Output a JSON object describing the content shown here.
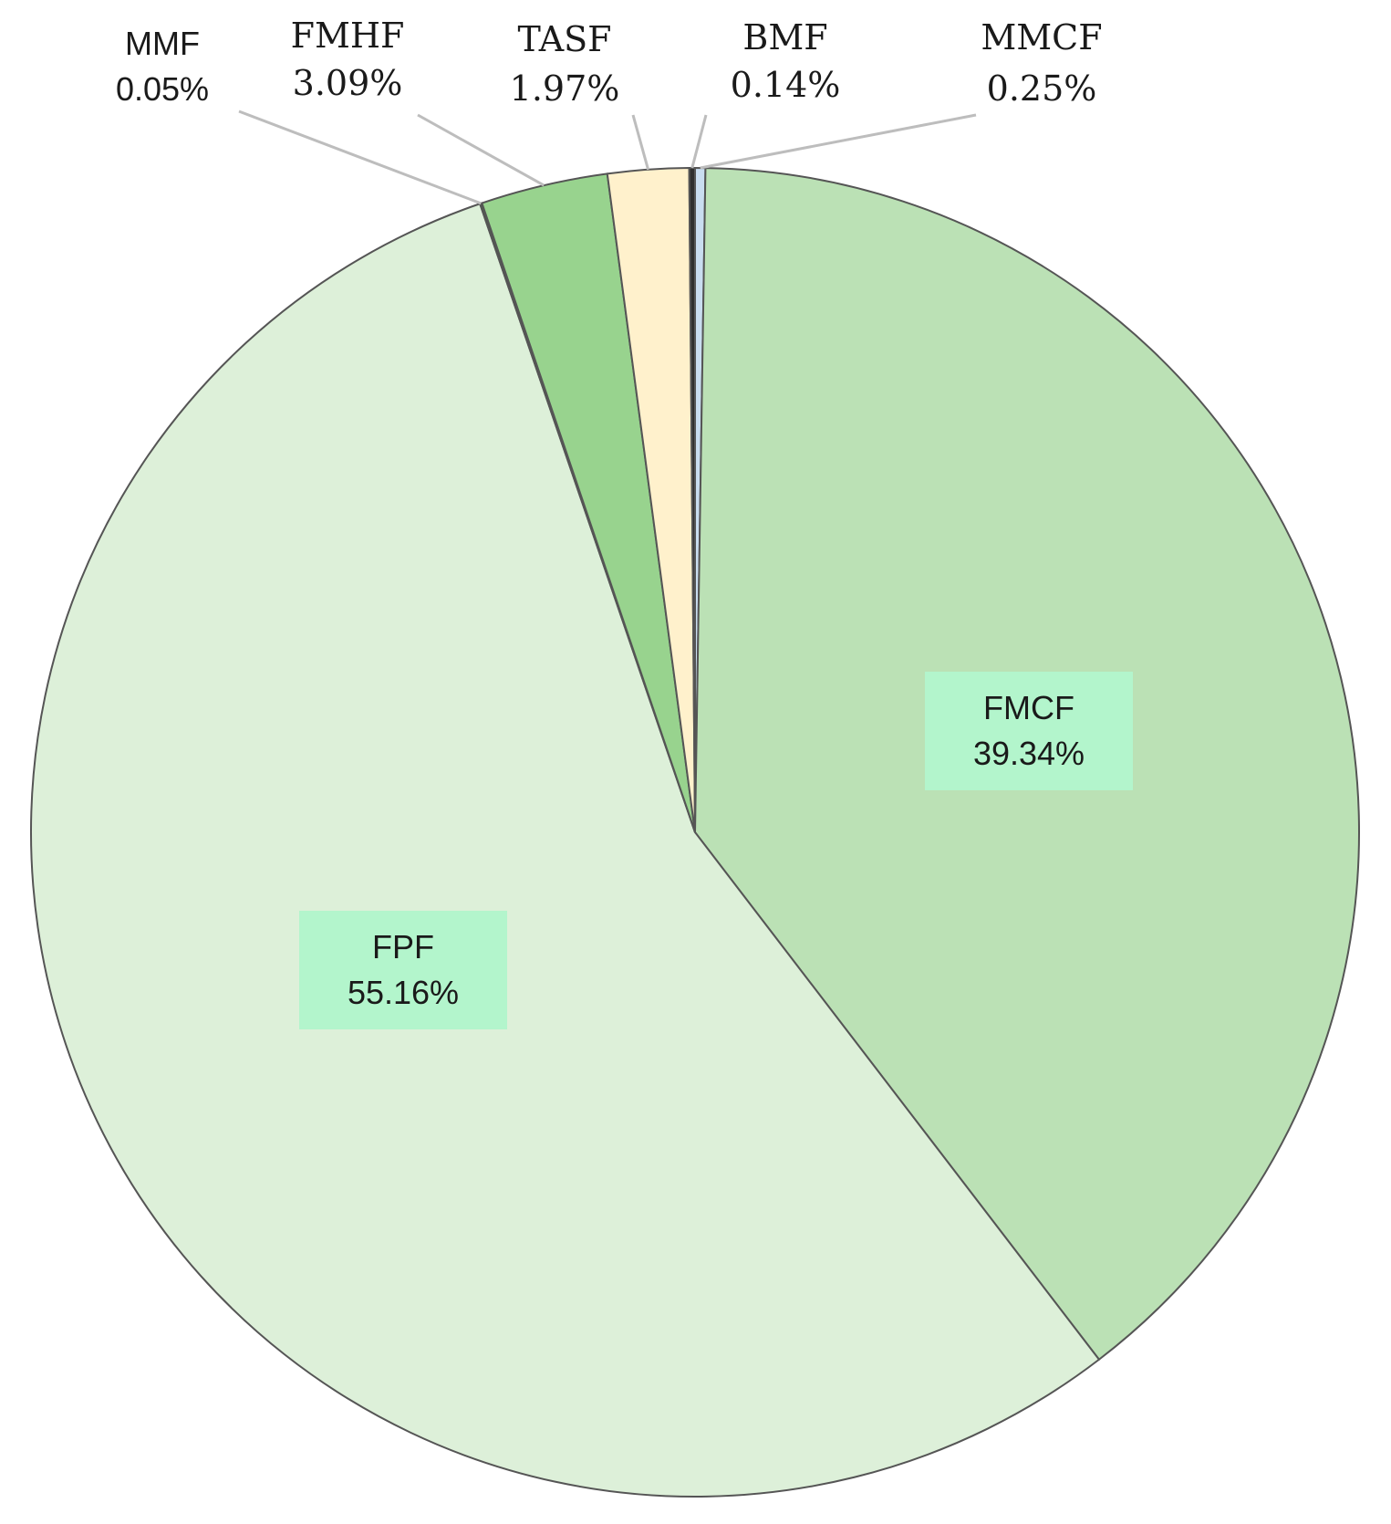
{
  "chart_data": {
    "type": "pie",
    "title": "",
    "start_angle_deg": 0,
    "direction": "clockwise",
    "slices": [
      {
        "name": "MMCF",
        "value": 0.25,
        "label": "0.25%",
        "color": "#c9ddf0",
        "label_style": "outside"
      },
      {
        "name": "FMCF",
        "value": 39.34,
        "label": "39.34%",
        "color": "#bbe1b5",
        "label_style": "inside"
      },
      {
        "name": "FPF",
        "value": 55.16,
        "label": "55.16%",
        "color": "#ddf0d9",
        "label_style": "inside"
      },
      {
        "name": "MMF",
        "value": 0.05,
        "label": "0.05%",
        "color": "#3f6f3a",
        "label_style": "outside"
      },
      {
        "name": "FMHF",
        "value": 3.09,
        "label": "3.09%",
        "color": "#98d38e",
        "label_style": "outside"
      },
      {
        "name": "TASF",
        "value": 1.97,
        "label": "1.97%",
        "color": "#fff1cc",
        "label_style": "outside"
      },
      {
        "name": "BMF",
        "value": 0.14,
        "label": "0.14%",
        "color": "#2f2f2f",
        "label_style": "outside"
      }
    ],
    "label_box_color": "#b3f5cc",
    "legend": "none"
  }
}
